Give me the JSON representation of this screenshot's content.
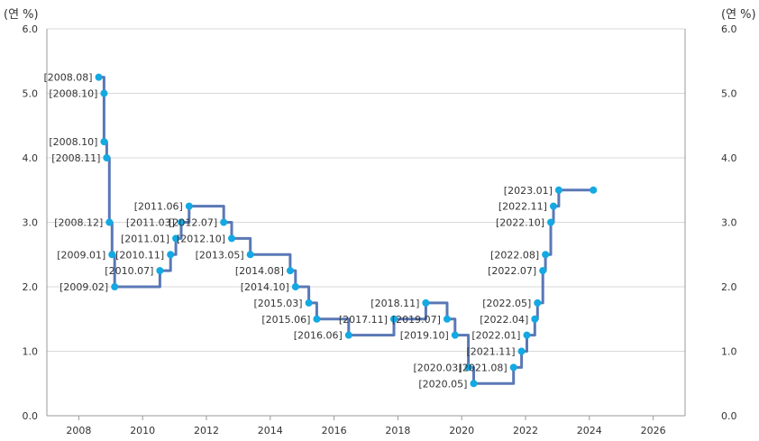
{
  "chart_data": {
    "type": "line",
    "step": true,
    "y_unit_left": "(연 %)",
    "y_unit_right": "(연 %)",
    "ylim": [
      0,
      6
    ],
    "y_ticks": [
      "0.0",
      "1.0",
      "2.0",
      "3.0",
      "4.0",
      "5.0",
      "6.0"
    ],
    "xlim": [
      2007,
      2027
    ],
    "x_ticks": [
      "2008",
      "2010",
      "2012",
      "2014",
      "2016",
      "2018",
      "2020",
      "2022",
      "2024",
      "2026"
    ],
    "grid": true,
    "series": [
      {
        "color": "#5a78b5",
        "marker_color": "#13a9e3",
        "points": [
          {
            "date": "2008.08",
            "value": 5.25,
            "label": "[2008.08]"
          },
          {
            "date": "2008.10",
            "value": 5.0,
            "label": "[2008.10]"
          },
          {
            "date": "2008.10",
            "value": 4.25,
            "label": "[2008.10]"
          },
          {
            "date": "2008.11",
            "value": 4.0,
            "label": "[2008.11]"
          },
          {
            "date": "2008.12",
            "value": 3.0,
            "label": "[2008.12]"
          },
          {
            "date": "2009.01",
            "value": 2.5,
            "label": "[2009.01]"
          },
          {
            "date": "2009.02",
            "value": 2.0,
            "label": "[2009.02]"
          },
          {
            "date": "2010.07",
            "value": 2.25,
            "label": "[2010.07]"
          },
          {
            "date": "2010.11",
            "value": 2.5,
            "label": "[2010.11]"
          },
          {
            "date": "2011.01",
            "value": 2.75,
            "label": "[2011.01]"
          },
          {
            "date": "2011.03",
            "value": 3.0,
            "label": "[2011.03]"
          },
          {
            "date": "2011.06",
            "value": 3.25,
            "label": "[2011.06]"
          },
          {
            "date": "2012.07",
            "value": 3.0,
            "label": "[2012.07]"
          },
          {
            "date": "2012.10",
            "value": 2.75,
            "label": "[2012.10]"
          },
          {
            "date": "2013.05",
            "value": 2.5,
            "label": "[2013.05]"
          },
          {
            "date": "2014.08",
            "value": 2.25,
            "label": "[2014.08]"
          },
          {
            "date": "2014.10",
            "value": 2.0,
            "label": "[2014.10]"
          },
          {
            "date": "2015.03",
            "value": 1.75,
            "label": "[2015.03]"
          },
          {
            "date": "2015.06",
            "value": 1.5,
            "label": "[2015.06]"
          },
          {
            "date": "2016.06",
            "value": 1.25,
            "label": "[2016.06]"
          },
          {
            "date": "2017.11",
            "value": 1.5,
            "label": "[2017.11]"
          },
          {
            "date": "2018.11",
            "value": 1.75,
            "label": "[2018.11]"
          },
          {
            "date": "2019.07",
            "value": 1.5,
            "label": "[2019.07]"
          },
          {
            "date": "2019.10",
            "value": 1.25,
            "label": "[2019.10]"
          },
          {
            "date": "2020.03",
            "value": 0.75,
            "label": "[2020.03]"
          },
          {
            "date": "2020.05",
            "value": 0.5,
            "label": "[2020.05]"
          },
          {
            "date": "2021.08",
            "value": 0.75,
            "label": "[2021.08]"
          },
          {
            "date": "2021.11",
            "value": 1.0,
            "label": "[2021.11]"
          },
          {
            "date": "2022.01",
            "value": 1.25,
            "label": "[2022.01]"
          },
          {
            "date": "2022.04",
            "value": 1.5,
            "label": "[2022.04]"
          },
          {
            "date": "2022.05",
            "value": 1.75,
            "label": "[2022.05]"
          },
          {
            "date": "2022.07",
            "value": 2.25,
            "label": "[2022.07]"
          },
          {
            "date": "2022.08",
            "value": 2.5,
            "label": "[2022.08]"
          },
          {
            "date": "2022.10",
            "value": 3.0,
            "label": "[2022.10]"
          },
          {
            "date": "2022.11",
            "value": 3.25,
            "label": "[2022.11]"
          },
          {
            "date": "2023.01",
            "value": 3.5,
            "label": "[2023.01]"
          },
          {
            "date": "2024.02",
            "value": 3.5,
            "label": ""
          }
        ]
      }
    ]
  }
}
